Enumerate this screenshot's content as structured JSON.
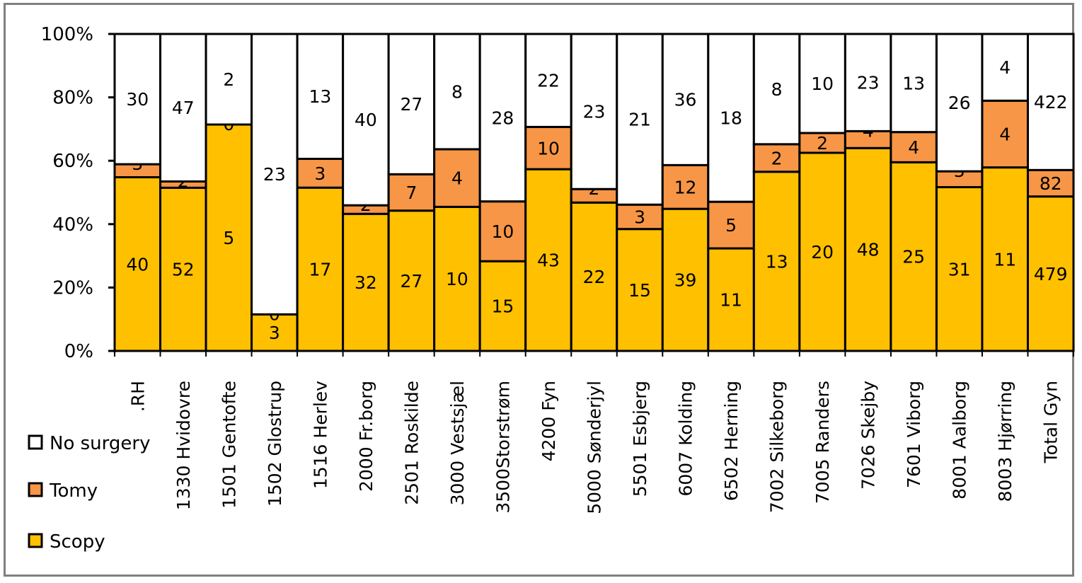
{
  "chart_data": {
    "type": "bar",
    "stacked": true,
    "normalized": true,
    "title": "",
    "xlabel": "",
    "ylabel": "",
    "ylim": [
      0,
      100
    ],
    "y_ticks": [
      "0%",
      "20%",
      "40%",
      "60%",
      "80%",
      "100%"
    ],
    "grid": false,
    "legend_position": "bottom-left",
    "categories": [
      ".RH",
      "1330 Hvidovre",
      "1501 Gentofte",
      "1502 Glostrup",
      "1516 Herlev",
      "2000 Fr.borg",
      "2501 Roskilde",
      "3000 Vestsjæl",
      "3500Storstrøm",
      "4200 Fyn",
      "5000 Sønderjyl",
      "5501 Esbjerg",
      "6007 Kolding",
      "6502 Herning",
      "7002 Silkeborg",
      "7005 Randers",
      "7026 Skejby",
      "7601 Viborg",
      "8001 Aalborg",
      "8003 Hjørring",
      "Total Gyn"
    ],
    "series": [
      {
        "name": "Scopy",
        "color": "#ffc000",
        "values": [
          40,
          52,
          5,
          3,
          17,
          32,
          27,
          10,
          15,
          43,
          22,
          15,
          39,
          11,
          13,
          20,
          48,
          25,
          31,
          11,
          479
        ]
      },
      {
        "name": "Tomy",
        "color": "#f79646",
        "values": [
          3,
          2,
          0,
          0,
          3,
          2,
          7,
          4,
          10,
          10,
          2,
          3,
          12,
          5,
          2,
          2,
          4,
          4,
          3,
          4,
          82
        ]
      },
      {
        "name": "No surgery",
        "color": "#ffffff",
        "values": [
          30,
          47,
          2,
          23,
          13,
          40,
          27,
          8,
          28,
          22,
          23,
          21,
          36,
          18,
          8,
          10,
          23,
          13,
          26,
          4,
          422
        ]
      }
    ],
    "legend": [
      "No surgery",
      "Tomy",
      "Scopy"
    ]
  }
}
